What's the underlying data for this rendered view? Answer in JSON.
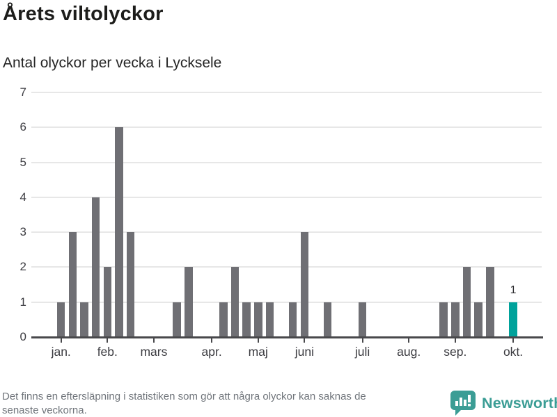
{
  "chart_data": {
    "type": "bar",
    "title": "Årets viltolyckor",
    "subtitle": "Antal olyckor per vecka i Lycksele",
    "x_unit": "vecka",
    "values": [
      1,
      3,
      1,
      4,
      2,
      6,
      3,
      0,
      0,
      0,
      1,
      2,
      0,
      0,
      1,
      2,
      1,
      1,
      1,
      0,
      1,
      3,
      0,
      1,
      0,
      0,
      1,
      0,
      0,
      0,
      0,
      0,
      0,
      1,
      1,
      2,
      1,
      2,
      0,
      1
    ],
    "ylim": [
      0,
      7
    ],
    "yticks": [
      0,
      1,
      2,
      3,
      4,
      5,
      6,
      7
    ],
    "grid": true,
    "legend": false,
    "month_ticks": [
      {
        "label": "jan.",
        "slot": 1
      },
      {
        "label": "feb.",
        "slot": 5
      },
      {
        "label": "mars",
        "slot": 9
      },
      {
        "label": "apr.",
        "slot": 14
      },
      {
        "label": "maj",
        "slot": 18
      },
      {
        "label": "juni",
        "slot": 22
      },
      {
        "label": "juli",
        "slot": 27
      },
      {
        "label": "aug.",
        "slot": 31
      },
      {
        "label": "sep.",
        "slot": 35
      },
      {
        "label": "okt.",
        "slot": 40
      }
    ],
    "highlight_index": 39,
    "highlight_label": "1",
    "colors": {
      "bar": "#6f6f74",
      "highlight": "#00a29b",
      "gridline": "#e7e7e7",
      "axis": "#48484b"
    }
  },
  "footer": {
    "note_line1": "Det finns en eftersläpning i statistiken som gör att några olyckor kan saknas de",
    "note_line2": "senaste veckorna.",
    "brand": {
      "name": "Newsworthy",
      "icon": "newsworthy-logo-icon",
      "color": "#3b9d95"
    }
  }
}
